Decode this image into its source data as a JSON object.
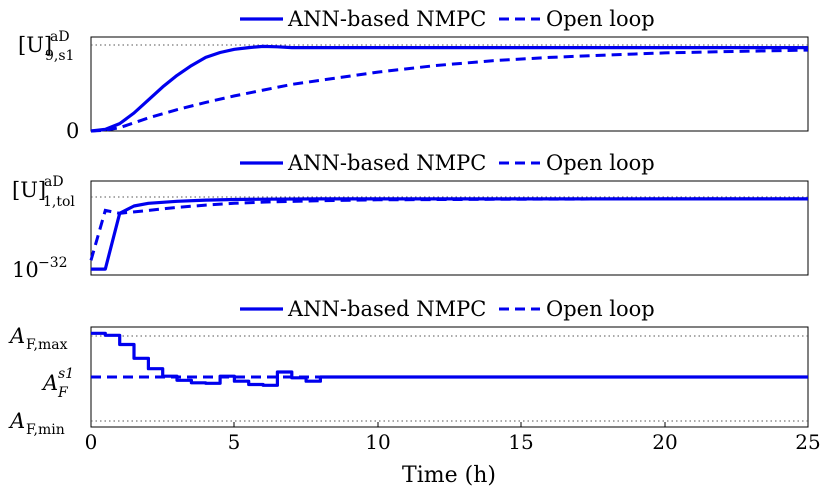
{
  "chart_data": [
    {
      "type": "line",
      "legend": [
        "ANN-based NMPC",
        "Open loop"
      ],
      "legend_position": "top-center",
      "ylabel_top": "[U]",
      "ylabel_top_sup": "aD",
      "ylabel_top_sub": "9,s1",
      "ylabel_bottom": "0",
      "xlim": [
        0,
        25
      ],
      "ylim": [
        0,
        1.15
      ],
      "reference": 1.0,
      "series": [
        {
          "name": "ANN-based NMPC",
          "x": [
            0,
            0.5,
            1,
            1.5,
            2,
            2.5,
            3,
            3.5,
            4,
            4.5,
            5,
            5.5,
            6,
            6.5,
            7,
            8,
            10,
            15,
            20,
            25
          ],
          "y": [
            0,
            0.02,
            0.09,
            0.22,
            0.38,
            0.54,
            0.68,
            0.8,
            0.9,
            0.96,
            1.0,
            1.02,
            1.035,
            1.03,
            1.02,
            1.02,
            1.02,
            1.02,
            1.02,
            1.02
          ]
        },
        {
          "name": "Open loop",
          "x": [
            0,
            0.5,
            1,
            1.5,
            2,
            3,
            4,
            5,
            6,
            7,
            8,
            10,
            12,
            14,
            16,
            18,
            20,
            22,
            25
          ],
          "y": [
            0,
            0.01,
            0.04,
            0.1,
            0.16,
            0.26,
            0.35,
            0.43,
            0.5,
            0.57,
            0.62,
            0.72,
            0.8,
            0.86,
            0.9,
            0.93,
            0.955,
            0.97,
            0.99
          ]
        }
      ]
    },
    {
      "type": "line",
      "legend": [
        "ANN-based NMPC",
        "Open loop"
      ],
      "legend_position": "top-center",
      "ylabel_top": "[U]",
      "ylabel_top_sup": "aD",
      "ylabel_top_sub": "1,tol",
      "ylabel_bottom": "10",
      "ylabel_bottom_sup": "−32",
      "xlim": [
        0,
        25
      ],
      "ylim": [
        -32,
        0
      ],
      "scale": "log",
      "reference": -2,
      "series": [
        {
          "name": "ANN-based NMPC",
          "x": [
            0,
            0.5,
            1,
            1.5,
            2,
            3,
            4,
            5,
            6,
            8,
            10,
            15,
            20,
            25
          ],
          "y": [
            -30,
            -30,
            -11,
            -8.5,
            -7.6,
            -6.9,
            -6.5,
            -6.3,
            -6.2,
            -6.1,
            -6.1,
            -6.1,
            -6.1,
            -6.1
          ]
        },
        {
          "name": "Open loop",
          "x": [
            0,
            0.5,
            1,
            2,
            3,
            4,
            5,
            6,
            8,
            10,
            15,
            20,
            25
          ],
          "y": [
            -27,
            -10,
            -11,
            -10,
            -9,
            -8.2,
            -7.6,
            -7.2,
            -6.7,
            -6.4,
            -6.2,
            -6.1,
            -6.1
          ]
        }
      ]
    },
    {
      "type": "line",
      "legend": [
        "ANN-based NMPC",
        "Open loop"
      ],
      "legend_position": "top-center",
      "yticklabels": [
        {
          "base": "A",
          "sub": "F,max"
        },
        {
          "base": "A",
          "sup": "s1",
          "sub": "F"
        },
        {
          "base": "A",
          "sub": "F,min"
        }
      ],
      "xlabel": "Time (h)",
      "xticks": [
        "0",
        "5",
        "10",
        "15",
        "20",
        "25"
      ],
      "xlim": [
        0,
        25
      ],
      "ylim": [
        -1.2,
        1.2
      ],
      "references": [
        1,
        -1
      ],
      "series": [
        {
          "name": "ANN-based NMPC",
          "step": true,
          "x": [
            0,
            0.5,
            1,
            1.5,
            2,
            2.5,
            3,
            3.5,
            4,
            4.5,
            5,
            5.5,
            6,
            6.5,
            7,
            7.5,
            8,
            25
          ],
          "y": [
            1.05,
            1.0,
            0.78,
            0.45,
            0.2,
            0.02,
            -0.08,
            -0.14,
            -0.15,
            0.02,
            -0.1,
            -0.18,
            -0.2,
            0.12,
            -0.02,
            -0.1,
            0,
            0
          ]
        },
        {
          "name": "Open loop",
          "x": [
            0,
            25
          ],
          "y": [
            0,
            0
          ]
        }
      ]
    }
  ]
}
